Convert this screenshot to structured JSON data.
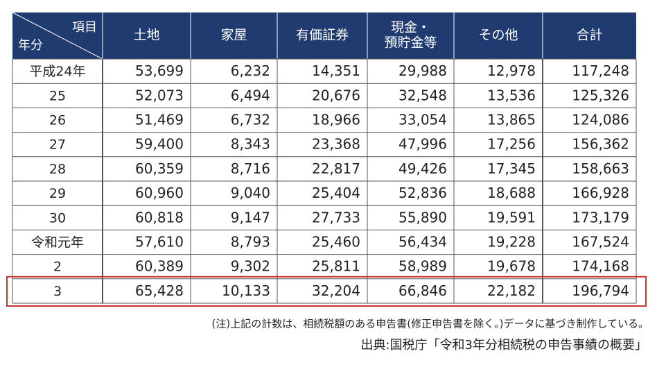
{
  "table": {
    "corner": {
      "top": "項目",
      "bottom": "年分"
    },
    "columns": [
      [
        "土地"
      ],
      [
        "家屋"
      ],
      [
        "有価証券"
      ],
      [
        "現金・",
        "預貯金等"
      ],
      [
        "その他"
      ],
      [
        "合計"
      ]
    ],
    "rows": [
      [
        "平成24年",
        "53,699",
        "6,232",
        "14,351",
        "29,988",
        "12,978",
        "117,248"
      ],
      [
        "25",
        "52,073",
        "6,494",
        "20,676",
        "32,548",
        "13,536",
        "125,326"
      ],
      [
        "26",
        "51,469",
        "6,732",
        "18,966",
        "33,054",
        "13,865",
        "124,086"
      ],
      [
        "27",
        "59,400",
        "8,343",
        "23,368",
        "47,996",
        "17,256",
        "156,362"
      ],
      [
        "28",
        "60,359",
        "8,716",
        "22,817",
        "49,426",
        "17,345",
        "158,663"
      ],
      [
        "29",
        "60,960",
        "9,040",
        "25,404",
        "52,836",
        "18,688",
        "166,928"
      ],
      [
        "30",
        "60,818",
        "9,147",
        "27,733",
        "55,890",
        "19,591",
        "173,179"
      ],
      [
        "令和元年",
        "57,610",
        "8,793",
        "25,460",
        "56,434",
        "19,228",
        "167,524"
      ],
      [
        "2",
        "60,389",
        "9,302",
        "25,811",
        "58,989",
        "19,678",
        "174,168"
      ],
      [
        "3",
        "65,428",
        "10,133",
        "32,204",
        "66,846",
        "22,182",
        "196,794"
      ]
    ]
  },
  "note": "(注)上記の計数は、相続税額のある申告書(修正申告書を除く。)データに基づき制作している。",
  "source": "出典:国税庁「令和3年分相続税の申告事績の概要」"
}
